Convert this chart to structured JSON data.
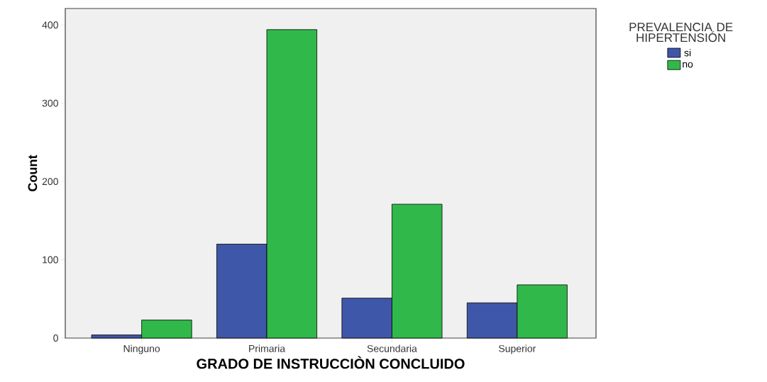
{
  "chart_data": {
    "type": "bar",
    "categories": [
      "Ninguno",
      "Primaria",
      "Secundaria",
      "Superior"
    ],
    "series": [
      {
        "name": "si",
        "color": "#3f57a8",
        "values": [
          4,
          120,
          51,
          45
        ]
      },
      {
        "name": "no",
        "color": "#30b94a",
        "values": [
          23,
          394,
          171,
          68
        ]
      }
    ],
    "xlabel": "GRADO DE INSTRUCCIÒN CONCLUIDO",
    "ylabel": "Count",
    "legend_title": "PREVALENCIA DE HIPERTENSIÓN",
    "legend": "right",
    "ylim": [
      0,
      421
    ],
    "yticks": [
      0,
      100,
      200,
      300,
      400
    ],
    "grid": false
  }
}
